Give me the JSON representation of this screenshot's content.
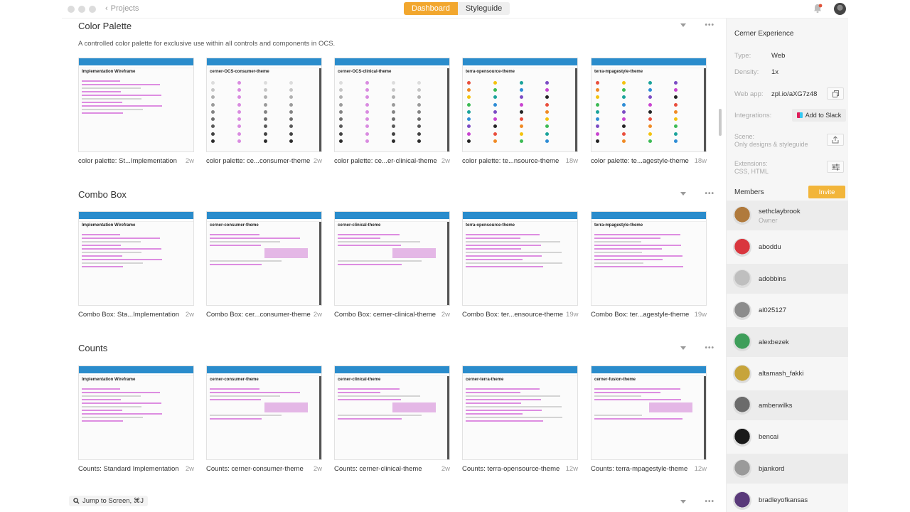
{
  "titlebar": {
    "back_label": "Projects",
    "tabs": [
      {
        "label": "Dashboard",
        "active": true
      },
      {
        "label": "Styleguide",
        "active": false
      }
    ],
    "accent": "#f2a72e"
  },
  "sections": [
    {
      "title": "Color Palette",
      "description": "A controlled color palette for exclusive use within all controls and components in OCS.",
      "cards": [
        {
          "caption": "color palette: St...Implementation",
          "age": "2w",
          "thumb_title": "Implementation Wireframe",
          "kind": "wire"
        },
        {
          "caption": "color palette: ce...consumer-theme",
          "age": "2w",
          "thumb_title": "cerner-OCS-consumer-theme",
          "kind": "gray"
        },
        {
          "caption": "color palette: ce...er-clinical-theme",
          "age": "2w",
          "thumb_title": "cerner-OCS-clinical-theme",
          "kind": "gray"
        },
        {
          "caption": "color palette: te...nsource-theme",
          "age": "18w",
          "thumb_title": "terra-opensource-theme",
          "kind": "color"
        },
        {
          "caption": "color palette: te...agestyle-theme",
          "age": "18w",
          "thumb_title": "terra-mpagestyle-theme",
          "kind": "color"
        }
      ]
    },
    {
      "title": "Combo Box",
      "description": "",
      "cards": [
        {
          "caption": "Combo Box: Sta...Implementation",
          "age": "2w",
          "thumb_title": "Implementation Wireframe",
          "kind": "wire"
        },
        {
          "caption": "Combo Box: cer...consumer-theme",
          "age": "2w",
          "thumb_title": "cerner-consumer-theme",
          "kind": "combo"
        },
        {
          "caption": "Combo Box: cerner-clinical-theme",
          "age": "2w",
          "thumb_title": "cerner-clinical-theme",
          "kind": "combo"
        },
        {
          "caption": "Combo Box: ter...ensource-theme",
          "age": "19w",
          "thumb_title": "terra-opensource-theme",
          "kind": "wire"
        },
        {
          "caption": "Combo Box: ter...agestyle-theme",
          "age": "19w",
          "thumb_title": "terra-mpagestyle-theme",
          "kind": "wire"
        }
      ]
    },
    {
      "title": "Counts",
      "description": "",
      "cards": [
        {
          "caption": "Counts: Standard Implementation",
          "age": "2w",
          "thumb_title": "Implementation Wireframe",
          "kind": "wire"
        },
        {
          "caption": "Counts: cerner-consumer-theme",
          "age": "2w",
          "thumb_title": "cerner-consumer-theme",
          "kind": "combo"
        },
        {
          "caption": "Counts: cerner-clinical-theme",
          "age": "2w",
          "thumb_title": "cerner-clinical-theme",
          "kind": "combo"
        },
        {
          "caption": "Counts: terra-opensource-theme",
          "age": "12w",
          "thumb_title": "cerner-terra-theme",
          "kind": "wire"
        },
        {
          "caption": "Counts: terra-mpagestyle-theme",
          "age": "12w",
          "thumb_title": "cerner-fusion-theme",
          "kind": "combo"
        }
      ]
    }
  ],
  "jump": {
    "label": "Jump to Screen, ⌘J"
  },
  "panel": {
    "project_name": "Cerner Experience",
    "type_label": "Type:",
    "type_value": "Web",
    "density_label": "Density:",
    "density_value": "1x",
    "webapp_label": "Web app:",
    "webapp_value": "zpl.io/aXG7z48",
    "integrations_label": "Integrations:",
    "slack_label": "Add to Slack",
    "scene_label": "Scene:",
    "scene_value": "Only designs & styleguide",
    "extensions_label": "Extensions:",
    "extensions_value": "CSS, HTML",
    "members_label": "Members",
    "invite_label": "Invite",
    "members": [
      {
        "name": "sethclaybrook",
        "role": "Owner",
        "color": "#b07a3c"
      },
      {
        "name": "aboddu",
        "role": "",
        "color": "#d9363e"
      },
      {
        "name": "adobbins",
        "role": "",
        "color": "#bfbfbf"
      },
      {
        "name": "al025127",
        "role": "",
        "color": "#8c8c8c"
      },
      {
        "name": "alexbezek",
        "role": "",
        "color": "#3e9e5a"
      },
      {
        "name": "altamash_fakki",
        "role": "",
        "color": "#c7a43a"
      },
      {
        "name": "amberwilks",
        "role": "",
        "color": "#6b6b6b"
      },
      {
        "name": "bencai",
        "role": "",
        "color": "#1a1a1a"
      },
      {
        "name": "bjankord",
        "role": "",
        "color": "#9a9a9a"
      },
      {
        "name": "bradleyofkansas",
        "role": "",
        "color": "#5a3a7a"
      }
    ]
  }
}
